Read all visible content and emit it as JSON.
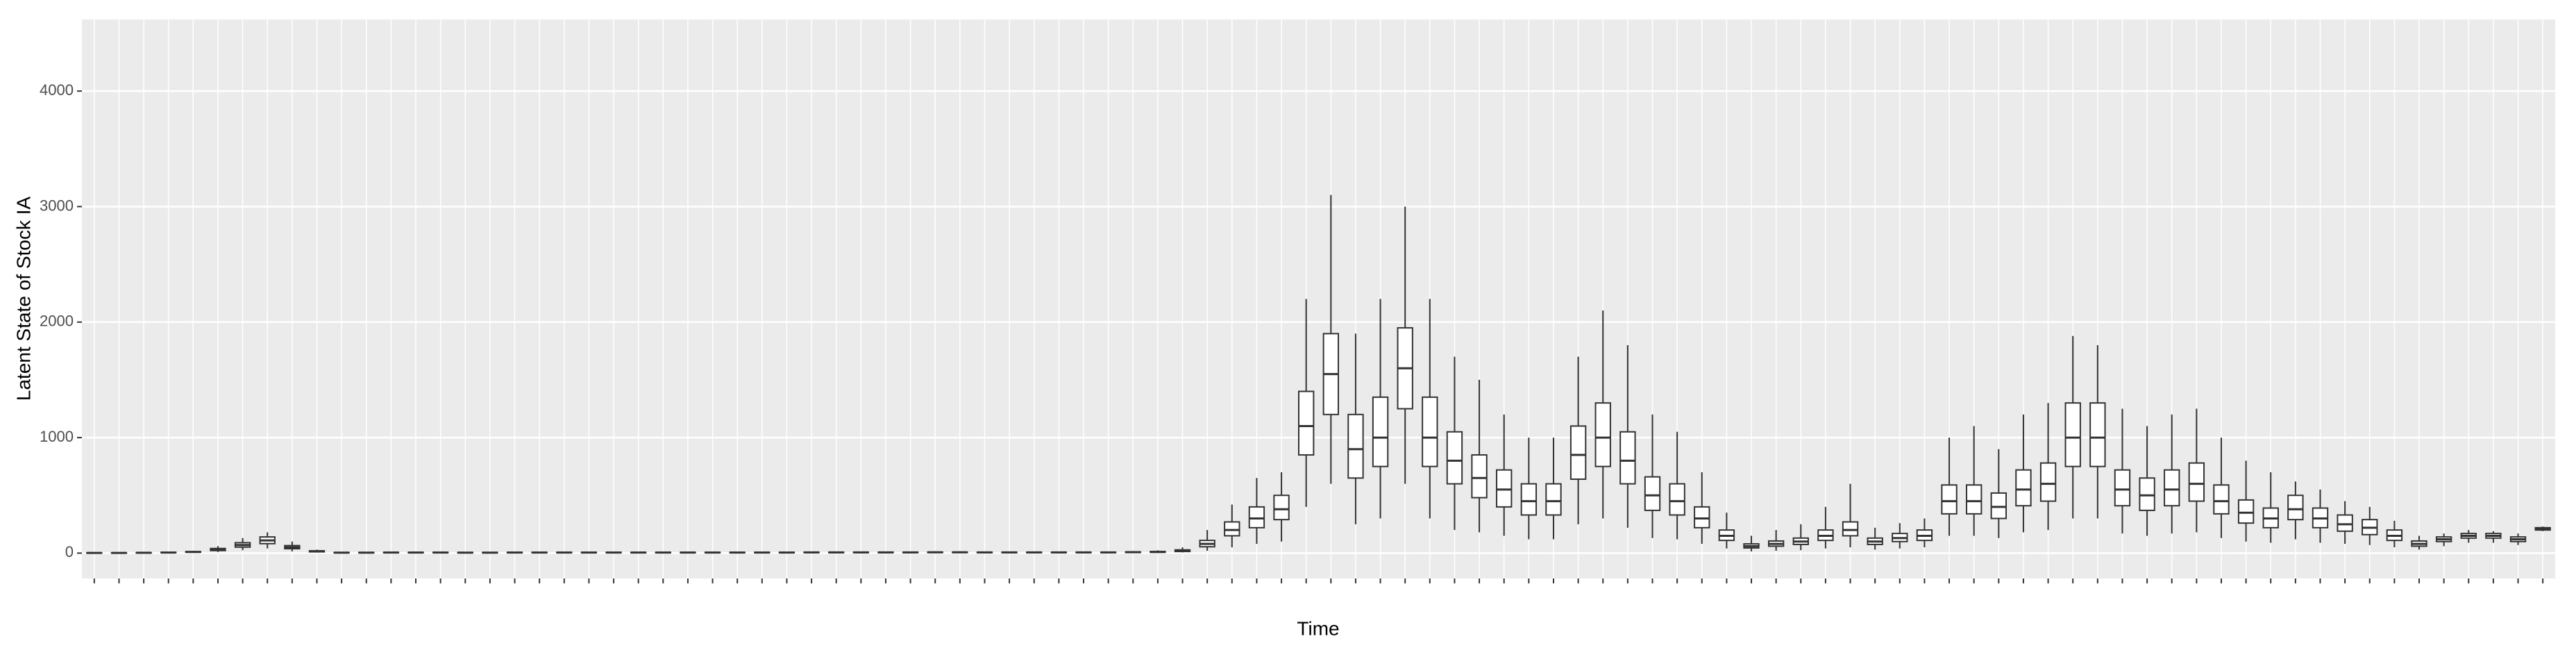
{
  "chart_data": {
    "type": "boxplot",
    "x_label": "Time",
    "y_label": "Latent State of Stock IA",
    "categories": [
      null,
      null,
      null,
      null,
      null,
      null,
      null,
      null,
      null,
      null,
      null,
      null,
      null,
      null,
      null,
      null,
      null,
      null,
      null,
      null,
      null,
      null,
      null,
      null,
      null,
      null,
      null,
      null,
      null,
      null,
      null,
      null,
      null,
      null,
      null,
      null,
      null,
      null,
      null,
      null,
      null,
      null,
      null,
      null,
      null,
      null,
      null,
      null,
      null,
      null,
      null,
      null,
      null,
      null,
      null,
      null,
      null,
      null,
      null,
      null,
      null,
      null,
      null,
      null,
      null,
      null,
      null,
      null,
      null,
      null,
      null,
      null,
      null,
      null,
      null,
      null,
      null,
      null,
      null,
      null,
      null,
      null,
      null,
      null,
      null,
      null,
      null,
      null,
      null,
      null,
      null,
      null,
      null,
      null,
      null,
      null,
      null,
      null,
      null,
      null
    ],
    "whislo": [
      1,
      1,
      1,
      2,
      3,
      10,
      25,
      40,
      15,
      5,
      1,
      1,
      1,
      1,
      1,
      1,
      1,
      1,
      1,
      1,
      1,
      1,
      1,
      1,
      1,
      1,
      1,
      1,
      1,
      2,
      2,
      2,
      2,
      2,
      2,
      2,
      2,
      2,
      2,
      2,
      2,
      2,
      3,
      3,
      6,
      20,
      50,
      80,
      100,
      400,
      600,
      250,
      300,
      600,
      300,
      200,
      180,
      150,
      120,
      120,
      250,
      300,
      220,
      130,
      120,
      80,
      40,
      15,
      20,
      25,
      40,
      50,
      30,
      40,
      50,
      150,
      150,
      130,
      180,
      200,
      300,
      300,
      170,
      150,
      170,
      180,
      130,
      100,
      90,
      120,
      90,
      80,
      70,
      50,
      30,
      60,
      90,
      90,
      70,
      190
    ],
    "q1": [
      1,
      1,
      2,
      4,
      8,
      22,
      52,
      82,
      38,
      11,
      2,
      2,
      3,
      3,
      3,
      2,
      2,
      3,
      3,
      3,
      3,
      3,
      3,
      3,
      3,
      3,
      3,
      3,
      3,
      4,
      4,
      4,
      4,
      4,
      5,
      5,
      4,
      4,
      4,
      4,
      4,
      4,
      6,
      7,
      14,
      55,
      150,
      220,
      290,
      850,
      1200,
      650,
      750,
      1250,
      750,
      600,
      480,
      400,
      330,
      330,
      640,
      750,
      600,
      370,
      330,
      220,
      110,
      45,
      60,
      75,
      110,
      150,
      75,
      100,
      110,
      340,
      340,
      300,
      410,
      450,
      750,
      750,
      410,
      370,
      410,
      450,
      340,
      260,
      220,
      290,
      220,
      190,
      160,
      110,
      60,
      100,
      130,
      130,
      100,
      200
    ],
    "median": [
      2,
      2,
      3,
      5,
      10,
      30,
      70,
      110,
      50,
      15,
      4,
      4,
      5,
      5,
      5,
      4,
      4,
      5,
      5,
      5,
      5,
      5,
      5,
      5,
      5,
      5,
      5,
      5,
      5,
      6,
      6,
      6,
      6,
      6,
      7,
      7,
      6,
      6,
      6,
      6,
      6,
      6,
      8,
      10,
      20,
      80,
      200,
      300,
      380,
      1100,
      1550,
      900,
      1000,
      1600,
      1000,
      800,
      650,
      550,
      450,
      450,
      850,
      1000,
      800,
      500,
      450,
      300,
      150,
      60,
      80,
      100,
      150,
      200,
      100,
      130,
      150,
      450,
      450,
      400,
      550,
      600,
      1000,
      1000,
      550,
      500,
      550,
      600,
      450,
      350,
      300,
      380,
      300,
      250,
      220,
      150,
      80,
      120,
      150,
      150,
      120,
      210
    ],
    "q3": [
      3,
      3,
      4,
      7,
      13,
      40,
      90,
      140,
      65,
      20,
      6,
      6,
      7,
      7,
      7,
      6,
      6,
      7,
      7,
      7,
      7,
      7,
      7,
      7,
      7,
      7,
      7,
      7,
      7,
      8,
      8,
      8,
      8,
      8,
      9,
      9,
      8,
      8,
      8,
      8,
      8,
      8,
      11,
      14,
      28,
      110,
      270,
      400,
      500,
      1400,
      1900,
      1200,
      1350,
      1950,
      1350,
      1050,
      850,
      720,
      600,
      600,
      1100,
      1300,
      1050,
      660,
      600,
      400,
      200,
      80,
      105,
      130,
      200,
      270,
      130,
      170,
      200,
      590,
      590,
      520,
      720,
      780,
      1300,
      1300,
      720,
      650,
      720,
      780,
      590,
      460,
      390,
      500,
      390,
      330,
      290,
      200,
      105,
      140,
      170,
      170,
      140,
      220
    ],
    "whishi": [
      4,
      4,
      6,
      10,
      20,
      60,
      130,
      180,
      100,
      30,
      10,
      10,
      12,
      12,
      12,
      10,
      10,
      12,
      12,
      12,
      12,
      12,
      12,
      12,
      12,
      12,
      12,
      12,
      12,
      14,
      14,
      14,
      14,
      14,
      16,
      16,
      14,
      14,
      14,
      14,
      14,
      14,
      18,
      24,
      50,
      200,
      420,
      650,
      700,
      2200,
      3100,
      1900,
      2200,
      3000,
      2200,
      1700,
      1500,
      1200,
      1000,
      1000,
      1700,
      2100,
      1800,
      1200,
      1050,
      700,
      350,
      150,
      200,
      250,
      400,
      600,
      220,
      260,
      300,
      1000,
      1100,
      900,
      1200,
      1300,
      1880,
      1800,
      1250,
      1100,
      1200,
      1250,
      1000,
      800,
      700,
      620,
      550,
      450,
      400,
      280,
      150,
      170,
      200,
      190,
      170,
      230
    ],
    "ylim": [
      -220,
      4620
    ],
    "yticks": [
      0,
      1000,
      2000,
      3000,
      4000
    ],
    "grid": true,
    "box_fill": "#ffffff",
    "box_color": "#333333",
    "panel_color": "#ebebeb"
  }
}
